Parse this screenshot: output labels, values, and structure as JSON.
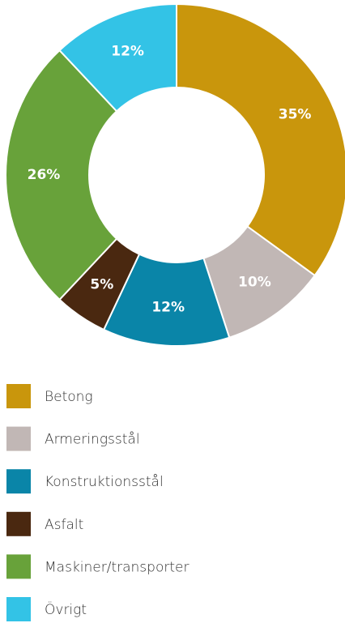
{
  "chart_data": {
    "type": "donut",
    "categories": [
      "Betong",
      "Armeringsstål",
      "Konstruktionsstål",
      "Asfalt",
      "Maskiner/transporter",
      "Övrigt"
    ],
    "values": [
      35,
      10,
      12,
      5,
      26,
      12
    ],
    "value_labels": [
      "35%",
      "10%",
      "12%",
      "5%",
      "26%",
      "12%"
    ],
    "colors": [
      "#c9960c",
      "#c1b7b5",
      "#0a85a8",
      "#4a2810",
      "#68a23a",
      "#33c3e6"
    ],
    "legend": "bottom"
  }
}
